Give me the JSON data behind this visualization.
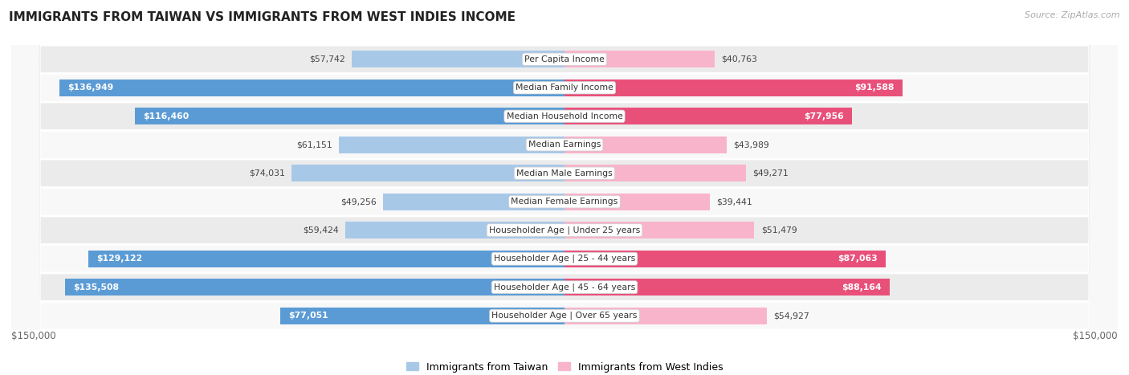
{
  "title": "IMMIGRANTS FROM TAIWAN VS IMMIGRANTS FROM WEST INDIES INCOME",
  "source": "Source: ZipAtlas.com",
  "categories": [
    "Per Capita Income",
    "Median Family Income",
    "Median Household Income",
    "Median Earnings",
    "Median Male Earnings",
    "Median Female Earnings",
    "Householder Age | Under 25 years",
    "Householder Age | 25 - 44 years",
    "Householder Age | 45 - 64 years",
    "Householder Age | Over 65 years"
  ],
  "taiwan_values": [
    57742,
    136949,
    116460,
    61151,
    74031,
    49256,
    59424,
    129122,
    135508,
    77051
  ],
  "westindies_values": [
    40763,
    91588,
    77956,
    43989,
    49271,
    39441,
    51479,
    87063,
    88164,
    54927
  ],
  "taiwan_labels": [
    "$57,742",
    "$136,949",
    "$116,460",
    "$61,151",
    "$74,031",
    "$49,256",
    "$59,424",
    "$129,122",
    "$135,508",
    "$77,051"
  ],
  "westindies_labels": [
    "$40,763",
    "$91,588",
    "$77,956",
    "$43,989",
    "$49,271",
    "$39,441",
    "$51,479",
    "$87,063",
    "$88,164",
    "$54,927"
  ],
  "taiwan_color_light": "#a8c8e8",
  "taiwan_color_dark": "#5b9bd5",
  "westindies_color_light": "#f8b4cb",
  "westindies_color_dark": "#e8507a",
  "max_value": 150000,
  "bar_height": 0.58,
  "background_color": "#ffffff",
  "row_bg_even": "#ebebeb",
  "row_bg_odd": "#f8f8f8",
  "taiwan_legend": "Immigrants from Taiwan",
  "westindies_legend": "Immigrants from West Indies",
  "xlim_label_left": "$150,000",
  "xlim_label_right": "$150,000",
  "tw_dark_threshold": 0.5,
  "wi_dark_threshold": 0.5
}
